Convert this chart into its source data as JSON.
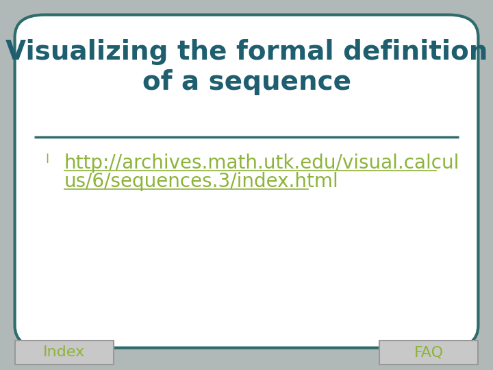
{
  "title_line1": "Visualizing the formal definition",
  "title_line2": "of a sequence",
  "title_color": "#1e5e6e",
  "title_fontsize": 28,
  "separator_color": "#2e6b6b",
  "separator_linewidth": 2.5,
  "bullet_color": "#8db33a",
  "bullet_char": "l",
  "link_text_line1": "http://archives.math.utk.edu/visual.calcul",
  "link_text_line2": "us/6/sequences.3/index.html",
  "link_color": "#8db33a",
  "link_fontsize": 20,
  "nav_left_text": "Index",
  "nav_right_text": "FAQ",
  "nav_color": "#8db33a",
  "nav_fontsize": 16,
  "nav_box_color": "#c8c8c8",
  "background_color": "#ffffff",
  "border_color": "#2e6b6b",
  "border_linewidth": 3,
  "outer_bg": "#b0b8b8"
}
